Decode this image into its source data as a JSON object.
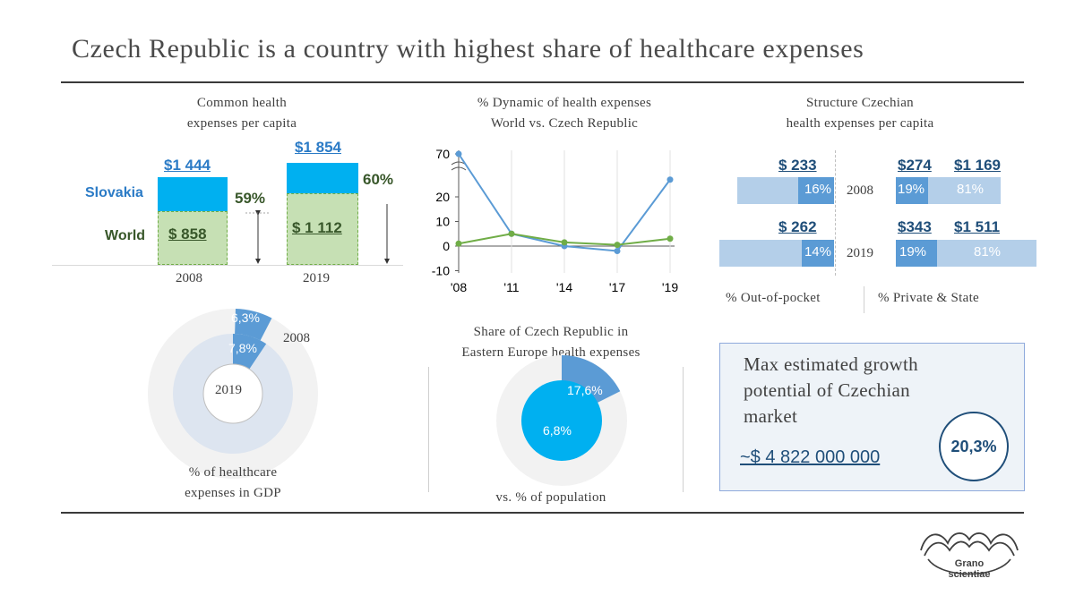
{
  "title": "Czech Republic is a country with highest share of healthcare expenses",
  "per_capita": {
    "caption_line1": "Common health",
    "caption_line2": "expenses per capita",
    "label_slovakia": "Slovakia",
    "label_world": "World",
    "years": [
      "2008",
      "2019"
    ],
    "slovakia_values": [
      "$1 444",
      "$1 854"
    ],
    "world_values": [
      "$ 858",
      "$ 1 112"
    ],
    "world_share": [
      "59%",
      "60%"
    ]
  },
  "gdp_share": {
    "caption_line1": "% of healthcare",
    "caption_line2": "expenses in GDP",
    "label_outer_year": "2008",
    "label_inner_year": "2019",
    "outer_value": "6,3%",
    "inner_value": "7,8%"
  },
  "dynamic": {
    "caption_line1": "% Dynamic of health expenses",
    "caption_line2": "World vs. Czech Republic"
  },
  "eastern_europe": {
    "caption_line1": "Share of Czech Republic in",
    "caption_line2": "Eastern Europe health expenses",
    "caption_bottom": "vs. % of population",
    "outer_value": "17,6%",
    "inner_value": "6,8%"
  },
  "structure": {
    "caption_line1": "Structure Czechian",
    "caption_line2": "health expenses per capita",
    "rows": [
      {
        "year": "2008",
        "oop_value": "$ 233",
        "oop_pct": "16%",
        "private_value": "$274",
        "state_value": "$1 169",
        "private_pct": "19%",
        "state_pct": "81%"
      },
      {
        "year": "2019",
        "oop_value": "$ 262",
        "oop_pct": "14%",
        "private_value": "$343",
        "state_value": "$1 511",
        "private_pct": "19%",
        "state_pct": "81%"
      }
    ],
    "legend_left": "% Out-of-pocket",
    "legend_right": "% Private & State"
  },
  "growth": {
    "line1": "Max estimated growth",
    "line2": "potential of Czechian",
    "line3": "market",
    "amount": "~$ 4 822 000 000",
    "percent": "20,3%"
  },
  "logo": {
    "line1": "Grano",
    "line2": "scientiae"
  },
  "colors": {
    "cyan": "#00b0f0",
    "blue": "#5b9bd5",
    "light_blue": "#b4cfe9",
    "green_fill": "#c6e0b4",
    "green_line": "#70ad47",
    "dark_navy": "#1f4e79"
  },
  "chart_data": [
    {
      "type": "bar",
      "categories": [
        "2008",
        "2019"
      ],
      "series": [
        {
          "name": "Slovakia",
          "values": [
            1444,
            1854
          ]
        },
        {
          "name": "World",
          "values": [
            858,
            1112
          ]
        }
      ]
    },
    {
      "type": "line",
      "x": [
        "'08",
        "'11",
        "'14",
        "'17",
        "'19"
      ],
      "yticks": [
        "70",
        "20",
        "10",
        "0",
        "-10"
      ],
      "axis_break": true,
      "series": [
        {
          "color": "#5b9bd5",
          "values": [
            70,
            5,
            0,
            -2,
            27
          ]
        },
        {
          "color": "#70ad47",
          "values": [
            1,
            5,
            1.5,
            0.5,
            3
          ]
        }
      ]
    },
    {
      "type": "pie",
      "series": [
        {
          "name": "2008",
          "values": [
            6.3
          ]
        },
        {
          "name": "2019",
          "values": [
            7.8
          ]
        }
      ]
    },
    {
      "type": "pie",
      "series": [
        {
          "values": [
            17.6
          ]
        },
        {
          "values": [
            6.8
          ]
        }
      ]
    },
    {
      "type": "bar",
      "categories": [
        "2008",
        "2019"
      ],
      "series": [
        {
          "name": "% Out-of-pocket",
          "values": [
            16,
            14
          ]
        },
        {
          "name": "% Private & State",
          "values": [
            19,
            19
          ]
        },
        {
          "values": [
            81,
            81
          ]
        }
      ]
    }
  ]
}
